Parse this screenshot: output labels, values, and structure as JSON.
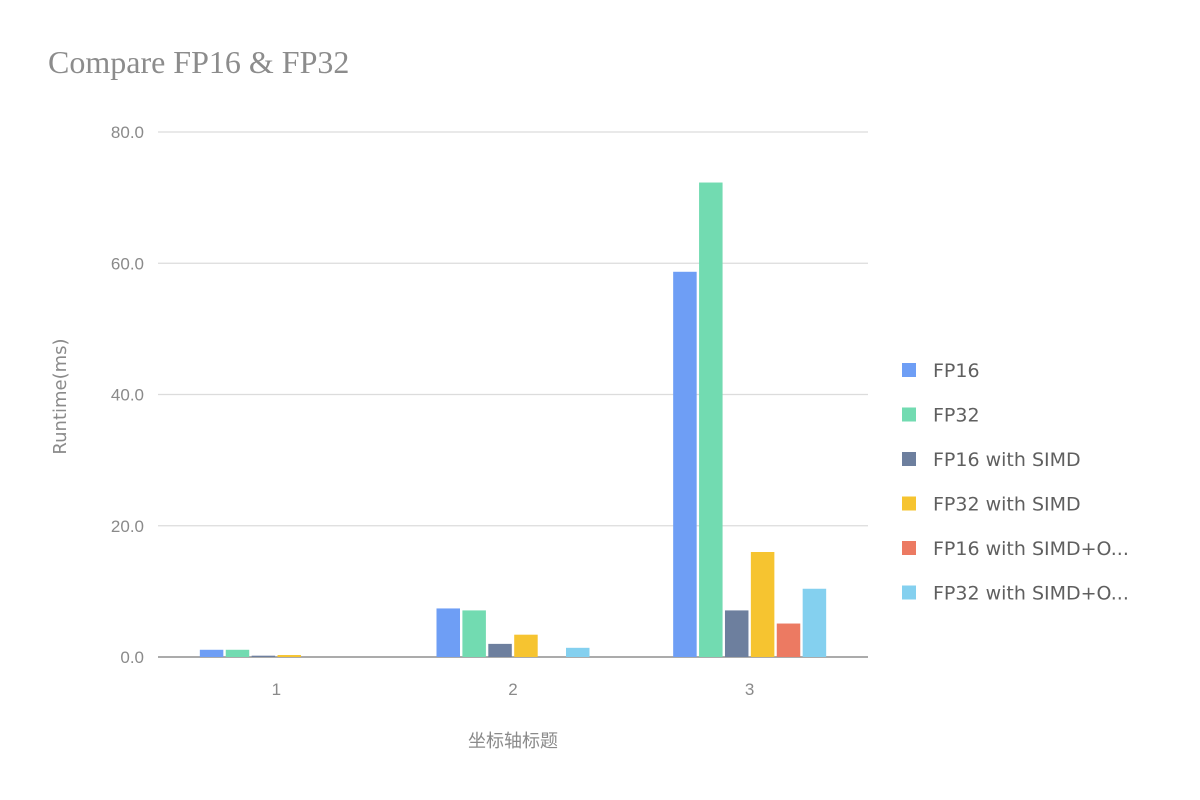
{
  "chart_data": {
    "type": "bar",
    "title": "Compare FP16 & FP32",
    "xlabel": "坐标轴标题",
    "ylabel": "Runtime(ms)",
    "categories": [
      "1",
      "2",
      "3"
    ],
    "ylim": [
      0,
      80
    ],
    "yticks": [
      "0.0",
      "20.0",
      "40.0",
      "60.0",
      "80.0"
    ],
    "grid": true,
    "legend_position": "right",
    "series": [
      {
        "name": "FP16",
        "legend_label": "FP16",
        "color": "#6e9ef5",
        "values": [
          1.1,
          7.4,
          58.7
        ]
      },
      {
        "name": "FP32",
        "legend_label": "FP32",
        "color": "#72dbb1",
        "values": [
          1.1,
          7.1,
          72.3
        ]
      },
      {
        "name": "FP16 with SIMD",
        "legend_label": "FP16 with SIMD",
        "color": "#6d7f9e",
        "values": [
          0.2,
          2.0,
          7.1
        ]
      },
      {
        "name": "FP32 with SIMD",
        "legend_label": "FP32 with SIMD",
        "color": "#f6c430",
        "values": [
          0.3,
          3.4,
          16.0
        ]
      },
      {
        "name": "FP16 with SIMD+O...",
        "legend_label": "FP16 with SIMD+O...",
        "color": "#ec7a62",
        "values": [
          0.0,
          0.0,
          5.1
        ]
      },
      {
        "name": "FP32 with SIMD+O...",
        "legend_label": "FP32 with SIMD+O...",
        "color": "#84d0ef",
        "values": [
          0.0,
          1.4,
          10.4
        ]
      }
    ]
  }
}
